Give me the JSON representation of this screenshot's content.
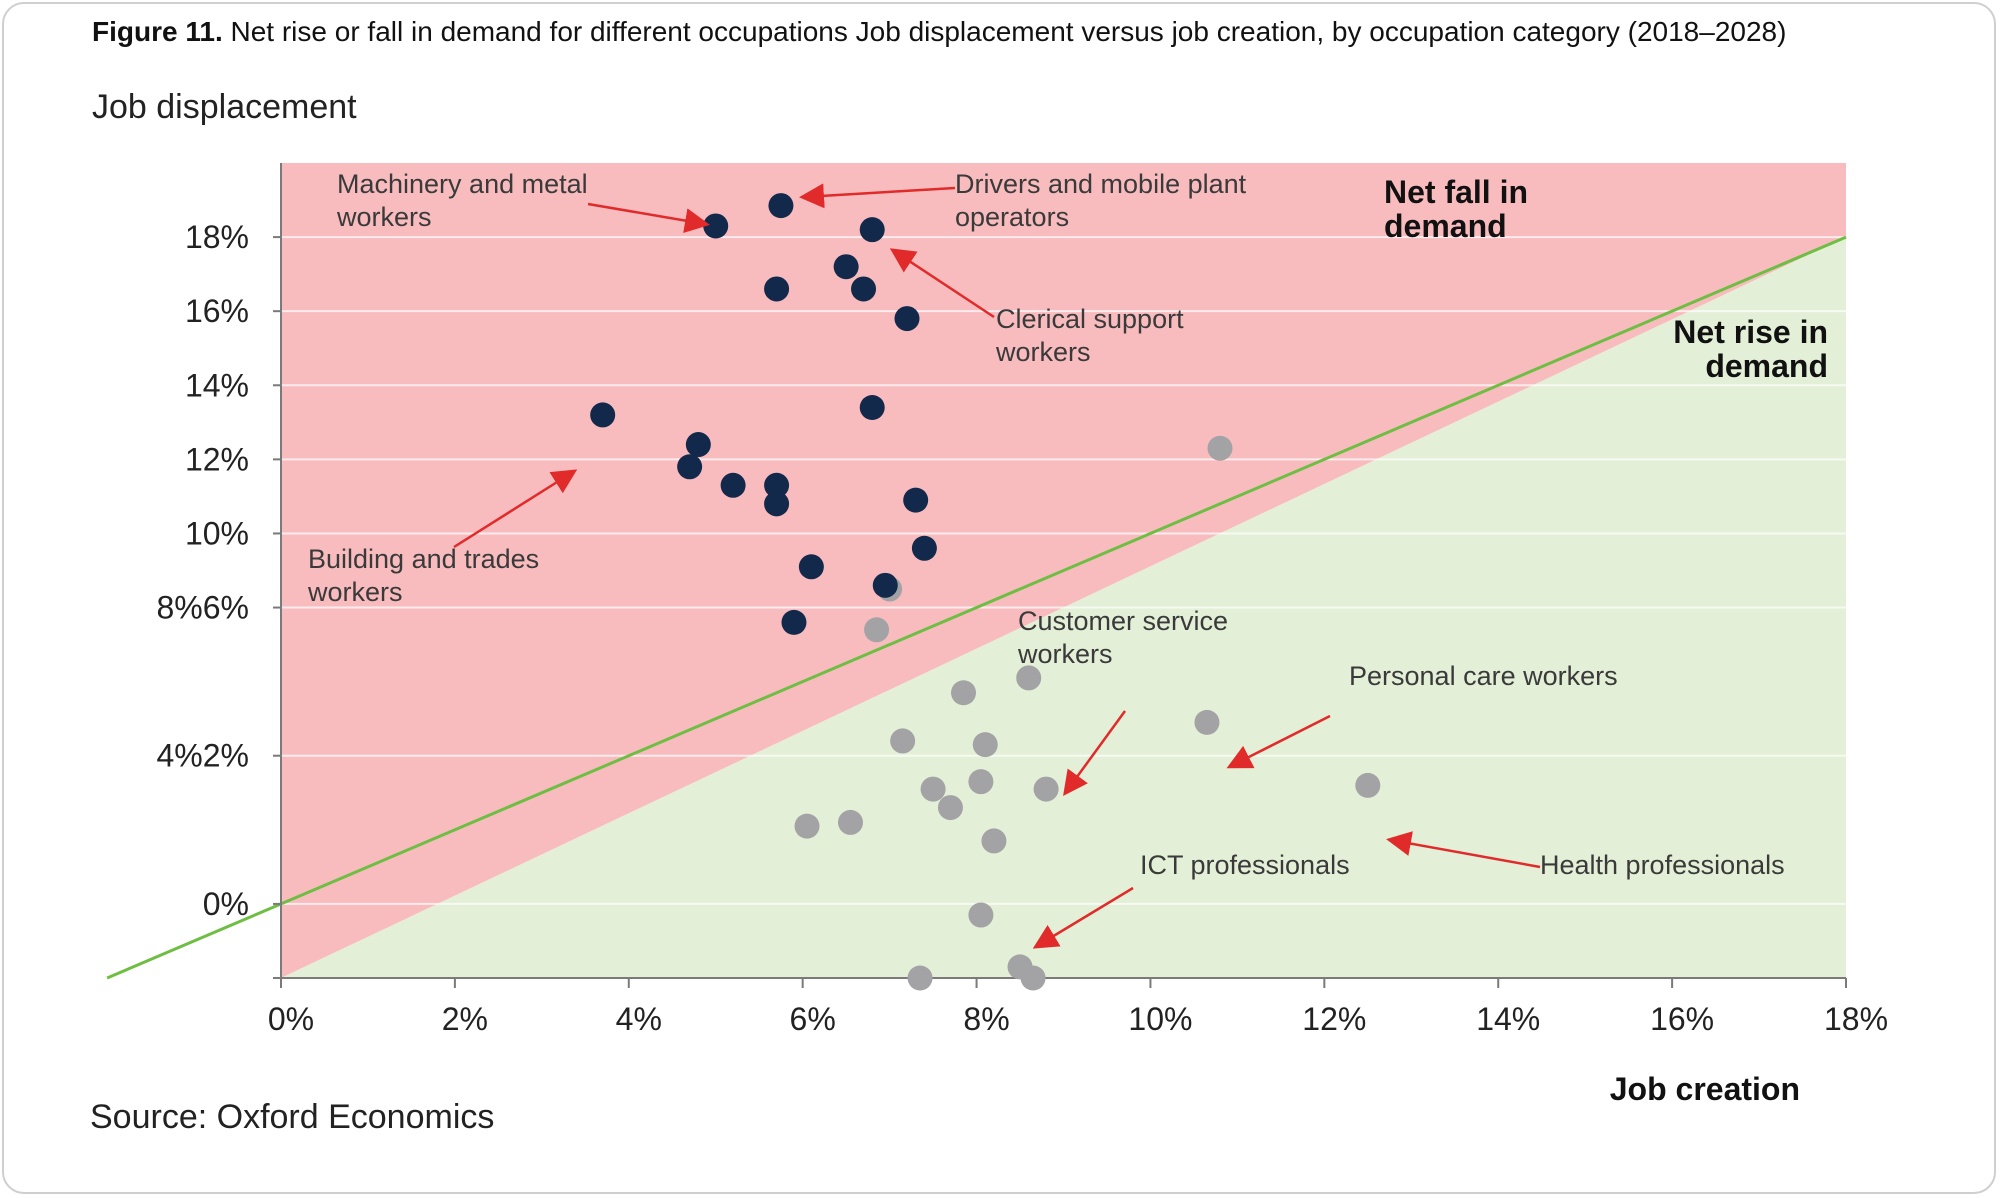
{
  "figure": {
    "label": "Figure 11.",
    "title": "Net rise or fall in demand for different occupations Job displacement versus job creation, by occupation category (2018–2028)",
    "source": "Source: Oxford Economics"
  },
  "colors": {
    "fall_region": "#f8bcbf",
    "rise_region": "#e3efd6",
    "diagonal": "#6fbe44",
    "fall_points": "#13294b",
    "rise_points": "#a3a3a6",
    "arrow": "#e12a2a",
    "gridline": "#ffffff"
  },
  "chart_data": {
    "type": "scatter",
    "xlabel": "Job creation",
    "ylabel": "Job displacement",
    "xlim": [
      0,
      18
    ],
    "ylim": [
      -2,
      20
    ],
    "x_ticks": [
      "0%",
      "2%",
      "4%",
      "6%",
      "8%",
      "10%",
      "12%",
      "14%",
      "16%",
      "18%"
    ],
    "y_ticks": [
      {
        "label": "18%",
        "y": 18
      },
      {
        "label": "16%",
        "y": 16
      },
      {
        "label": "14%",
        "y": 14
      },
      {
        "label": "12%",
        "y": 12
      },
      {
        "label": "10%",
        "y": 10
      },
      {
        "label": "8%6%",
        "y": 8
      },
      {
        "label": "4%2%",
        "y": 4
      },
      {
        "label": "0%",
        "y": 0
      }
    ],
    "regions": [
      {
        "name": "Net fall in demand",
        "lines": [
          "Net fall in",
          "demand"
        ]
      },
      {
        "name": "Net rise in demand",
        "lines": [
          "Net rise in",
          "demand"
        ]
      }
    ],
    "fall_points": [
      [
        5.0,
        18.3
      ],
      [
        5.75,
        18.85
      ],
      [
        6.8,
        18.2
      ],
      [
        6.5,
        17.2
      ],
      [
        5.7,
        16.6
      ],
      [
        6.7,
        16.6
      ],
      [
        7.2,
        15.8
      ],
      [
        3.7,
        13.2
      ],
      [
        6.8,
        13.4
      ],
      [
        4.8,
        12.4
      ],
      [
        4.7,
        11.8
      ],
      [
        5.2,
        11.3
      ],
      [
        5.7,
        11.3
      ],
      [
        5.7,
        10.8
      ],
      [
        7.3,
        10.9
      ],
      [
        6.1,
        9.1
      ],
      [
        7.4,
        9.6
      ],
      [
        6.95,
        8.6
      ],
      [
        5.9,
        7.6
      ]
    ],
    "rise_points": [
      [
        10.8,
        12.3
      ],
      [
        7.0,
        8.5
      ],
      [
        6.85,
        7.4
      ],
      [
        7.85,
        5.7
      ],
      [
        8.6,
        6.1
      ],
      [
        10.65,
        4.9
      ],
      [
        7.15,
        4.4
      ],
      [
        8.1,
        4.3
      ],
      [
        8.05,
        3.3
      ],
      [
        7.5,
        3.1
      ],
      [
        8.8,
        3.1
      ],
      [
        12.5,
        3.2
      ],
      [
        7.7,
        2.6
      ],
      [
        6.05,
        2.1
      ],
      [
        6.55,
        2.2
      ],
      [
        8.2,
        1.7
      ],
      [
        8.05,
        -0.3
      ],
      [
        8.5,
        -1.7
      ],
      [
        7.35,
        -2.0
      ],
      [
        8.65,
        -2.0
      ]
    ],
    "annotations": [
      {
        "lines": [
          "Machinery and metal",
          "workers"
        ],
        "target": [
          5.0,
          18.3
        ]
      },
      {
        "lines": [
          "Drivers and mobile plant",
          "operators"
        ],
        "target": [
          5.75,
          18.85
        ]
      },
      {
        "lines": [
          "Clerical support",
          "workers"
        ],
        "target": [
          6.8,
          18.2
        ]
      },
      {
        "lines": [
          "Building and trades",
          "workers"
        ],
        "target": [
          3.7,
          13.2
        ]
      },
      {
        "lines": [
          "Customer service",
          "workers"
        ],
        "target": [
          8.6,
          4.7
        ]
      },
      {
        "lines": [
          "Personal care workers"
        ],
        "target": [
          10.65,
          4.9
        ]
      },
      {
        "lines": [
          "ICT professionals"
        ],
        "target": [
          8.15,
          -0.8
        ]
      },
      {
        "lines": [
          "Health professionals"
        ],
        "target": [
          12.5,
          3.2
        ]
      }
    ]
  }
}
